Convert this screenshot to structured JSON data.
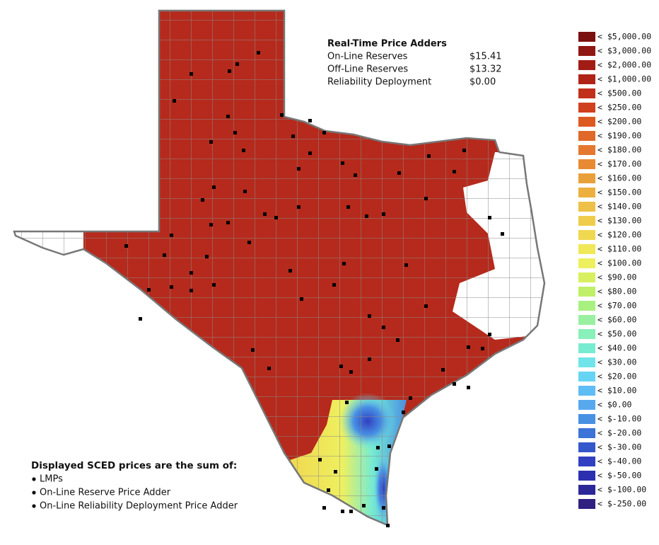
{
  "price_adders": {
    "title": "Real-Time Price Adders",
    "rows": [
      [
        "On-Line Reserves",
        "$15.41"
      ],
      [
        "Off-Line Reserves",
        "$13.32"
      ],
      [
        "Reliability Deployment",
        "$0.00"
      ]
    ]
  },
  "note": {
    "title": "Displayed SCED prices are the sum of:",
    "items": [
      "LMPs",
      "On-Line Reserve Price Adder",
      "On-Line Reliability Deployment Price Adder"
    ]
  },
  "legend": [
    {
      "label": "< $5,000.00",
      "color": "#7a1010"
    },
    {
      "label": "< $3,000.00",
      "color": "#901812"
    },
    {
      "label": "< $2,000.00",
      "color": "#a01c14"
    },
    {
      "label": "< $1,000.00",
      "color": "#b02418"
    },
    {
      "label": "< $500.00",
      "color": "#c0301a"
    },
    {
      "label": "< $250.00",
      "color": "#d0401e"
    },
    {
      "label": "< $200.00",
      "color": "#dc5a22"
    },
    {
      "label": "< $190.00",
      "color": "#e06828"
    },
    {
      "label": "< $180.00",
      "color": "#e47830"
    },
    {
      "label": "< $170.00",
      "color": "#e88a34"
    },
    {
      "label": "< $160.00",
      "color": "#eaa03a"
    },
    {
      "label": "< $150.00",
      "color": "#ecb040"
    },
    {
      "label": "< $140.00",
      "color": "#eec048"
    },
    {
      "label": "< $130.00",
      "color": "#f0cc4c"
    },
    {
      "label": "< $120.00",
      "color": "#f0d850"
    },
    {
      "label": "< $110.00",
      "color": "#f0e858"
    },
    {
      "label": "< $100.00",
      "color": "#eef060"
    },
    {
      "label": "< $90.00",
      "color": "#d8f060"
    },
    {
      "label": "< $80.00",
      "color": "#c0f068"
    },
    {
      "label": "< $70.00",
      "color": "#a8f080"
    },
    {
      "label": "< $60.00",
      "color": "#98f0a0"
    },
    {
      "label": "< $50.00",
      "color": "#88f0b8"
    },
    {
      "label": "< $40.00",
      "color": "#78ecd0"
    },
    {
      "label": "< $30.00",
      "color": "#70e4e8"
    },
    {
      "label": "< $20.00",
      "color": "#68d4f4"
    },
    {
      "label": "< $10.00",
      "color": "#60bcf4"
    },
    {
      "label": "< $0.00",
      "color": "#58a8ee"
    },
    {
      "label": "< $-10.00",
      "color": "#4890e4"
    },
    {
      "label": "< $-20.00",
      "color": "#3c74d8"
    },
    {
      "label": "< $-30.00",
      "color": "#3458cc"
    },
    {
      "label": "< $-40.00",
      "color": "#3040c0"
    },
    {
      "label": "< $-50.00",
      "color": "#2c30b0"
    },
    {
      "label": "< $-100.00",
      "color": "#2c2898"
    },
    {
      "label": "< $-250.00",
      "color": "#302080"
    }
  ]
}
